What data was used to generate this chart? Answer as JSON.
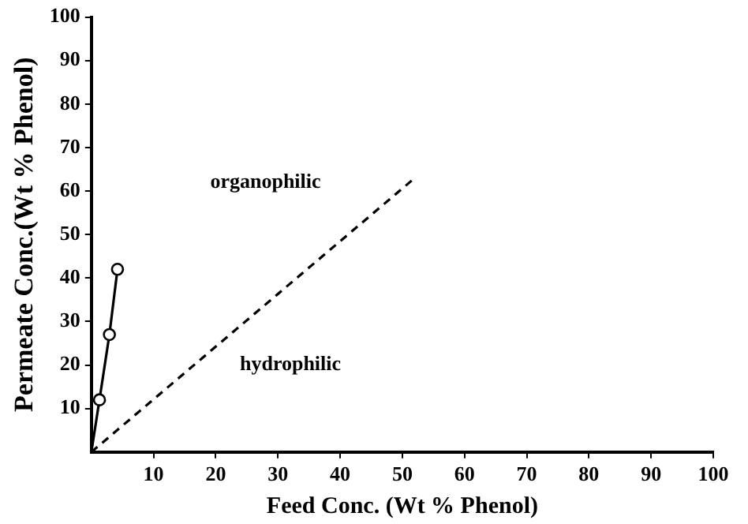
{
  "chart_data": {
    "type": "line",
    "xlabel": "Feed Conc. (Wt % Phenol)",
    "ylabel": "Permeate Conc.(Wt % Phenol)",
    "series": [
      {
        "type": "line",
        "x": [
          0,
          1.3,
          2.9,
          4.2
        ],
        "values": [
          0,
          12,
          27,
          42
        ],
        "color": "#000000",
        "marker": "circle",
        "line_style": "solid"
      },
      {
        "type": "line",
        "x": [
          0,
          52
        ],
        "values": [
          0,
          63
        ],
        "color": "#000000",
        "marker": "none",
        "line_style": "dashed"
      }
    ],
    "xlim": [
      0,
      100
    ],
    "xticks": [
      10,
      20,
      30,
      40,
      50,
      60,
      70,
      80,
      90,
      100
    ],
    "ylim": [
      0,
      100
    ],
    "yticks": [
      10,
      20,
      30,
      40,
      50,
      60,
      70,
      80,
      90,
      100
    ],
    "grid": false,
    "legend": false,
    "annotations": [
      "organophilic",
      "hydrophilic"
    ]
  }
}
